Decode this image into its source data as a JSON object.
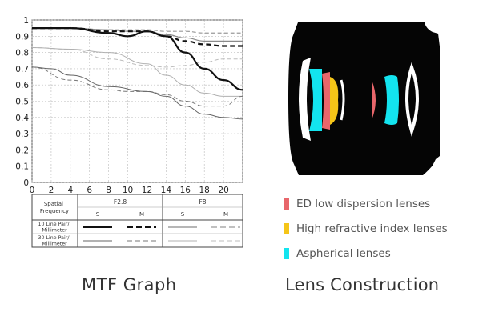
{
  "chart_data": {
    "type": "line",
    "x_ticks": [
      0,
      2,
      4,
      6,
      8,
      10,
      12,
      14,
      16,
      18,
      20
    ],
    "y_ticks": [
      0,
      0.1,
      0.2,
      0.3,
      0.4,
      0.5,
      0.6,
      0.7,
      0.8,
      0.9,
      1
    ],
    "xlim": [
      0,
      22
    ],
    "ylim": [
      0,
      1
    ],
    "grid": true,
    "series": [
      {
        "aperture": "F2.8",
        "frequency": "10 Line Pair/Millimeter",
        "orientation": "S",
        "style": "solid-thick",
        "color": "#111111",
        "x": [
          0,
          4,
          8,
          10,
          12,
          14,
          16,
          18,
          20,
          22
        ],
        "y": [
          0.95,
          0.95,
          0.92,
          0.9,
          0.93,
          0.9,
          0.8,
          0.7,
          0.63,
          0.57
        ]
      },
      {
        "aperture": "F2.8",
        "frequency": "10 Line Pair/Millimeter",
        "orientation": "M",
        "style": "dashed-thick",
        "color": "#111111",
        "x": [
          0,
          4,
          8,
          10,
          12,
          14,
          16,
          18,
          20,
          22
        ],
        "y": [
          0.95,
          0.95,
          0.93,
          0.93,
          0.93,
          0.9,
          0.87,
          0.85,
          0.84,
          0.84
        ]
      },
      {
        "aperture": "F2.8",
        "frequency": "30 Line Pair/Millimeter",
        "orientation": "S",
        "style": "solid-thin",
        "color": "#666666",
        "x": [
          0,
          2,
          4,
          8,
          12,
          14,
          16,
          18,
          20,
          22
        ],
        "y": [
          0.71,
          0.7,
          0.66,
          0.59,
          0.56,
          0.53,
          0.47,
          0.42,
          0.4,
          0.39
        ]
      },
      {
        "aperture": "F2.8",
        "frequency": "30 Line Pair/Millimeter",
        "orientation": "M",
        "style": "dashed-thin",
        "color": "#777777",
        "x": [
          0,
          4,
          8,
          10,
          12,
          14,
          16,
          18,
          20,
          22
        ],
        "y": [
          0.71,
          0.63,
          0.57,
          0.56,
          0.56,
          0.54,
          0.5,
          0.47,
          0.47,
          0.53
        ]
      },
      {
        "aperture": "F8",
        "frequency": "10 Line Pair/Millimeter",
        "orientation": "S",
        "style": "solid-gray",
        "color": "#8a8a8a",
        "x": [
          0,
          4,
          8,
          10,
          12,
          14,
          16,
          18,
          20,
          22
        ],
        "y": [
          0.95,
          0.95,
          0.94,
          0.93,
          0.93,
          0.91,
          0.89,
          0.87,
          0.87,
          0.87
        ]
      },
      {
        "aperture": "F8",
        "frequency": "10 Line Pair/Millimeter",
        "orientation": "M",
        "style": "dashed-gray",
        "color": "#9a9a9a",
        "x": [
          0,
          4,
          8,
          10,
          12,
          14,
          16,
          18,
          20,
          22
        ],
        "y": [
          0.95,
          0.95,
          0.94,
          0.94,
          0.94,
          0.93,
          0.93,
          0.92,
          0.92,
          0.92
        ]
      },
      {
        "aperture": "F8",
        "frequency": "30 Line Pair/Millimeter",
        "orientation": "S",
        "style": "solid-lightgray",
        "color": "#b0b0b0",
        "x": [
          0,
          4,
          8,
          12,
          14,
          16,
          18,
          20,
          22
        ],
        "y": [
          0.83,
          0.82,
          0.8,
          0.73,
          0.66,
          0.6,
          0.55,
          0.53,
          0.53
        ]
      },
      {
        "aperture": "F8",
        "frequency": "30 Line Pair/Millimeter",
        "orientation": "M",
        "style": "dashed-lightgray",
        "color": "#bdbdbd",
        "x": [
          0,
          4,
          8,
          12,
          14,
          16,
          18,
          20,
          22
        ],
        "y": [
          0.83,
          0.82,
          0.76,
          0.72,
          0.71,
          0.72,
          0.74,
          0.76,
          0.76
        ]
      }
    ]
  },
  "legend_table": {
    "spatial_frequency": "Spatial Frequency",
    "apertures": [
      "F2.8",
      "F8"
    ],
    "orientations": [
      "S",
      "M",
      "S",
      "M"
    ],
    "rows": [
      "10 Line Pair/ Millimeter",
      "30 Line Pair/ Millimeter"
    ]
  },
  "captions": {
    "mtf": "MTF Graph",
    "lens": "Lens Construction"
  },
  "lens_legend": [
    {
      "label": "ED low dispersion lenses",
      "color": "#e8666b"
    },
    {
      "label": "High refractive index lenses",
      "color": "#f5c518"
    },
    {
      "label": "Aspherical lenses",
      "color": "#13e4ef"
    }
  ],
  "colors": {
    "lens_body": "#050505",
    "ed": "#e8666b",
    "high_index": "#f5c518",
    "aspherical": "#13e4ef"
  }
}
